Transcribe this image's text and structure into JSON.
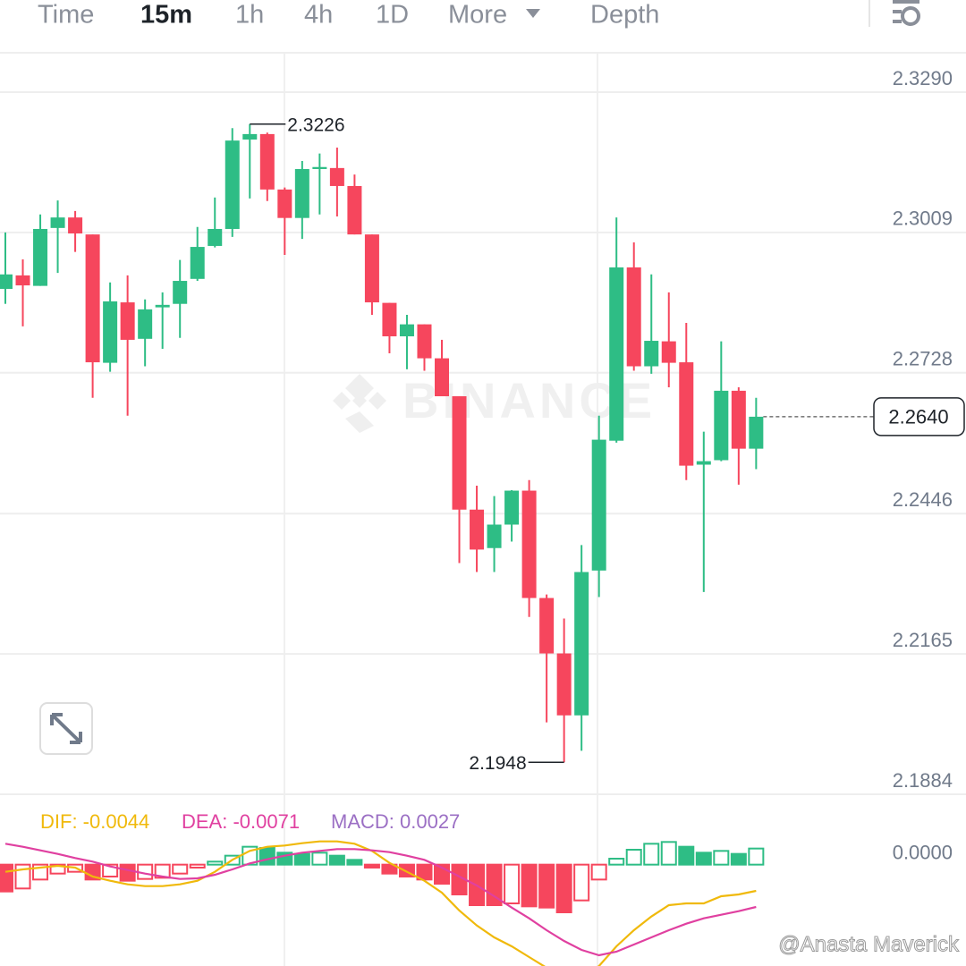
{
  "tabs": [
    "Time",
    "15m",
    "1h",
    "4h",
    "1D",
    "More",
    "Depth"
  ],
  "active_tab": 1,
  "watermarks": [
    "BINANCE",
    "@Anasta Maverick"
  ],
  "chart_data": {
    "type": "candlestick",
    "open": [
      2.2896,
      2.2923,
      2.2902,
      2.3018,
      2.3039,
      2.3005,
      2.2748,
      2.2869,
      2.2796,
      2.2859,
      2.2866,
      2.2916,
      2.2982,
      2.3016,
      2.3195,
      2.3206,
      2.3095,
      2.3038,
      2.3136,
      2.3138,
      2.3102,
      2.3005,
      2.2868,
      2.2801,
      2.2825,
      2.2757,
      2.2681,
      2.2454,
      2.2377,
      2.2424,
      2.2492,
      2.2277,
      2.2166,
      2.2042,
      2.2332,
      2.2592,
      2.2939,
      2.2741,
      2.2791,
      2.2749,
      2.2544,
      2.2553,
      2.2692,
      2.2576
    ],
    "high": [
      2.3009,
      2.2955,
      2.3045,
      2.3073,
      2.3052,
      2.3005,
      2.2909,
      2.2923,
      2.2875,
      2.2889,
      2.2954,
      2.302,
      2.3079,
      2.3218,
      2.3226,
      2.3209,
      2.3099,
      2.3152,
      2.3167,
      2.3179,
      2.3125,
      2.3005,
      2.2868,
      2.2844,
      2.2825,
      2.2794,
      2.2681,
      2.2502,
      2.2481,
      2.2493,
      2.2513,
      2.2284,
      2.2236,
      2.2383,
      2.2642,
      2.3039,
      2.2989,
      2.2925,
      2.2889,
      2.2828,
      2.261,
      2.2791,
      2.2699,
      2.2678
    ],
    "low": [
      2.2866,
      2.2821,
      2.2902,
      2.2928,
      2.297,
      2.2678,
      2.273,
      2.2642,
      2.2741,
      2.2776,
      2.2798,
      2.2912,
      2.2979,
      2.3,
      2.3077,
      2.3072,
      2.2964,
      2.2996,
      2.3045,
      2.3041,
      2.3005,
      2.2844,
      2.2767,
      2.2735,
      2.2732,
      2.2681,
      2.2347,
      2.2329,
      2.2329,
      2.239,
      2.2239,
      2.2028,
      2.1948,
      2.1971,
      2.2279,
      2.2588,
      2.2732,
      2.2726,
      2.2699,
      2.2513,
      2.2289,
      2.2551,
      2.2504,
      2.2535
    ],
    "close": [
      2.2925,
      2.2903,
      2.3016,
      2.3039,
      2.3007,
      2.2749,
      2.2871,
      2.2794,
      2.2855,
      2.2864,
      2.2912,
      2.298,
      2.3016,
      2.3193,
      2.3206,
      2.3095,
      2.3038,
      2.3136,
      2.314,
      2.3102,
      2.3005,
      2.2869,
      2.2801,
      2.2825,
      2.2757,
      2.2681,
      2.2454,
      2.2374,
      2.2424,
      2.2492,
      2.2277,
      2.2166,
      2.2042,
      2.2329,
      2.2594,
      2.2939,
      2.2741,
      2.2792,
      2.2748,
      2.2542,
      2.2551,
      2.2692,
      2.2576,
      2.264
    ],
    "up_color": "#2ebd85",
    "down_color": "#f6465d",
    "ylim": [
      2.1884,
      2.3367
    ],
    "yticks": [
      {
        "value": 2.329,
        "label": "2.3290"
      },
      {
        "value": 2.3009,
        "label": "2.3009"
      },
      {
        "value": 2.2728,
        "label": "2.2728"
      },
      {
        "value": 2.2446,
        "label": "2.2446"
      },
      {
        "value": 2.2165,
        "label": "2.2165"
      },
      {
        "value": 2.1884,
        "label": "2.1884"
      }
    ],
    "grid": true,
    "last_price": {
      "value": 2.264,
      "label": "2.2640"
    },
    "high_label": 2.3226,
    "low_label": 2.1948,
    "macd": {
      "labels": [
        "DIF: -0.0044",
        "DEA: -0.0071",
        "MACD: 0.0027"
      ],
      "ylim": [
        -0.017,
        0.01
      ],
      "yticks": [
        {
          "value": 0,
          "label": "0.0000"
        }
      ],
      "dif_color": "#f0b90b",
      "dea_color": "#e040a0",
      "label_colors": [
        "#f0b90b",
        "#e040a0",
        "#9b6fc4"
      ],
      "dif": [
        -0.0012,
        -0.0008,
        -0.0005,
        -0.0002,
        -0.0005,
        -0.002,
        -0.0027,
        -0.0033,
        -0.0036,
        -0.0036,
        -0.0033,
        -0.0027,
        -0.0012,
        0.0008,
        0.0023,
        0.003,
        0.0032,
        0.0036,
        0.0039,
        0.0039,
        0.0035,
        0.0023,
        0.0003,
        -0.0012,
        -0.0027,
        -0.0047,
        -0.0077,
        -0.0102,
        -0.0122,
        -0.0137,
        -0.0155,
        -0.0173,
        -0.0185,
        -0.0188,
        -0.017,
        -0.0137,
        -0.011,
        -0.0087,
        -0.0068,
        -0.0065,
        -0.0065,
        -0.0053,
        -0.005,
        -0.0044
      ],
      "dea": [
        0.0035,
        0.003,
        0.0024,
        0.0018,
        0.0011,
        0.0005,
        -0.0003,
        -0.0009,
        -0.0015,
        -0.002,
        -0.0024,
        -0.0023,
        -0.0017,
        -0.0008,
        0.0002,
        0.0009,
        0.0015,
        0.002,
        0.0023,
        0.0026,
        0.0026,
        0.0024,
        0.0021,
        0.0015,
        0.0008,
        -0.0005,
        -0.002,
        -0.0035,
        -0.0053,
        -0.0072,
        -0.009,
        -0.011,
        -0.0128,
        -0.0143,
        -0.0152,
        -0.0146,
        -0.0134,
        -0.0122,
        -0.011,
        -0.0099,
        -0.009,
        -0.0084,
        -0.0078,
        -0.0071
      ],
      "hist": [
        -0.0045,
        -0.004,
        -0.0025,
        -0.0015,
        -0.0012,
        -0.0025,
        -0.002,
        -0.0027,
        -0.0024,
        -0.0022,
        -0.0015,
        -0.0005,
        0.0005,
        0.0015,
        0.003,
        0.0028,
        0.002,
        0.0018,
        0.002,
        0.0015,
        0.0008,
        -0.0005,
        -0.0015,
        -0.002,
        -0.0025,
        -0.0032,
        -0.005,
        -0.0068,
        -0.0068,
        -0.0065,
        -0.007,
        -0.0072,
        -0.008,
        -0.006,
        -0.0025,
        0.001,
        0.0025,
        0.0035,
        0.0038,
        0.003,
        0.002,
        0.0023,
        0.0018,
        0.0027
      ]
    }
  }
}
